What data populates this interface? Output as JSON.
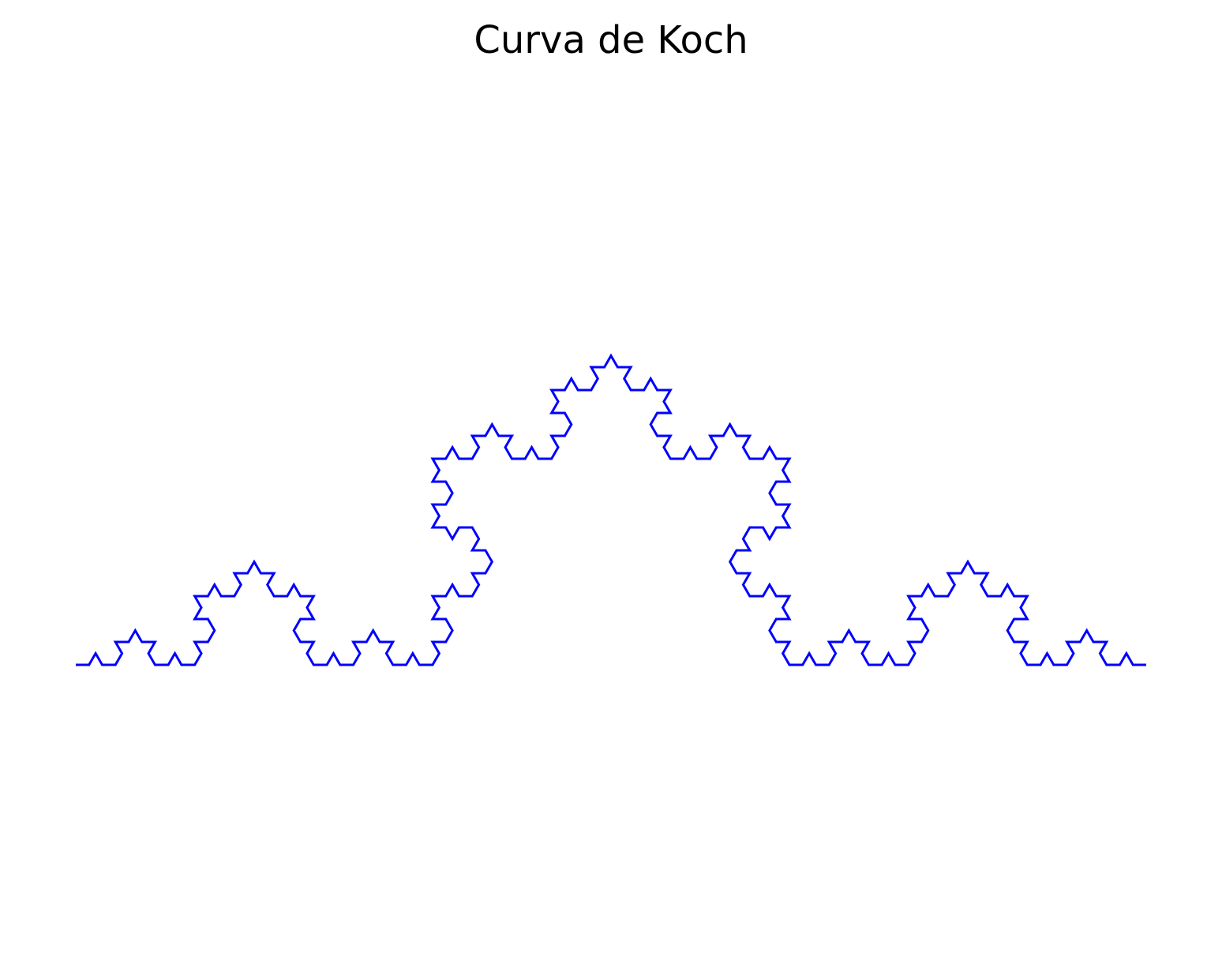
{
  "chart_data": {
    "type": "line",
    "title": "Curva de Koch",
    "xlabel": "",
    "ylabel": "",
    "axes_visible": false,
    "grid": false,
    "legend": "none",
    "series": [
      {
        "curve": "koch",
        "iterations": 4,
        "start": [
          0,
          0
        ],
        "end": [
          1,
          0
        ],
        "color": "#0000ff"
      }
    ],
    "xlim": [
      -0.05,
      1.05
    ],
    "ylim": [
      -0.3,
      0.62
    ]
  }
}
